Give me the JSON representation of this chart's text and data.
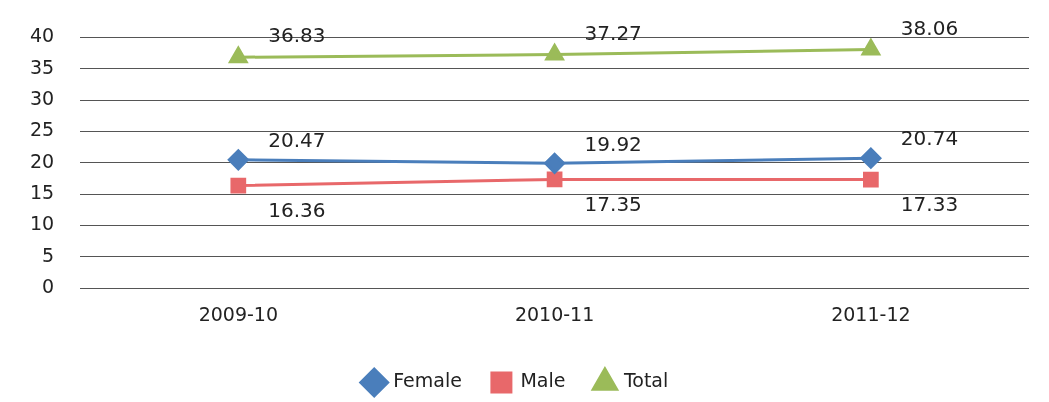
{
  "chart_data": {
    "type": "line",
    "categories": [
      "2009-10",
      "2010-11",
      "2011-12"
    ],
    "series": [
      {
        "name": "Female",
        "color": "#4a7ebb",
        "marker": "diamond",
        "values": [
          20.47,
          19.92,
          20.74
        ]
      },
      {
        "name": "Male",
        "color": "#e8686a",
        "marker": "square",
        "values": [
          16.36,
          17.35,
          17.33
        ]
      },
      {
        "name": "Total",
        "color": "#9bbb59",
        "marker": "triangle",
        "values": [
          36.83,
          37.27,
          38.06
        ]
      }
    ],
    "ylim": [
      0,
      40
    ],
    "yticks": [
      0,
      5,
      10,
      15,
      20,
      25,
      30,
      35,
      40
    ],
    "grid": "y",
    "legend": "bottom",
    "data_labels": true
  }
}
